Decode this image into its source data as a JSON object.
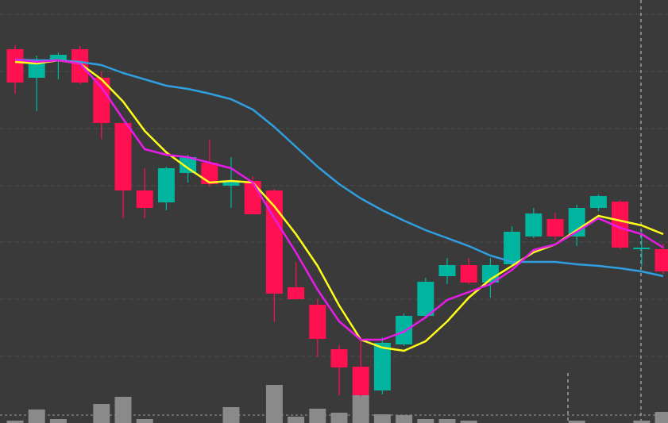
{
  "chart_data": {
    "type": "candlestick",
    "ylim": [
      0,
      533
    ],
    "yticks": [
      515,
      443,
      371,
      299,
      228,
      156,
      84
    ],
    "grid": true,
    "y2lim": [
      0,
      533
    ],
    "candles": {
      "up_color": "#00b5a0",
      "down_color": "#ff1050",
      "open": [
        471,
        435,
        457,
        471,
        435,
        378,
        293,
        278,
        315,
        328,
        299,
        305,
        293,
        171,
        149,
        93,
        71,
        41,
        99,
        135,
        185,
        199,
        177,
        200,
        235,
        257,
        235,
        271,
        279,
        219,
        219
      ],
      "high": [
        476,
        463,
        467,
        475,
        443,
        378,
        321,
        323,
        338,
        357,
        335,
        311,
        295,
        203,
        156,
        98,
        108,
        108,
        138,
        183,
        208,
        208,
        208,
        248,
        271,
        265,
        275,
        288,
        281,
        243,
        226
      ],
      "low": [
        415,
        393,
        433,
        427,
        358,
        258,
        258,
        268,
        303,
        298,
        271,
        263,
        128,
        156,
        83,
        35,
        33,
        36,
        97,
        133,
        175,
        175,
        158,
        198,
        233,
        231,
        223,
        267,
        219,
        198,
        188
      ],
      "close": [
        429,
        455,
        464,
        429,
        378,
        293,
        271,
        321,
        335,
        301,
        305,
        263,
        163,
        156,
        106,
        70,
        35,
        101,
        135,
        178,
        199,
        177,
        199,
        241,
        264,
        235,
        271,
        286,
        221,
        221,
        191
      ]
    },
    "series": [
      {
        "color": "#2f9fe0",
        "values": [
          458,
          457,
          457,
          455,
          451,
          441,
          433,
          425,
          421,
          415,
          408,
          395,
          373,
          348,
          323,
          301,
          283,
          268,
          255,
          243,
          233,
          223,
          211,
          203,
          203,
          203,
          200,
          198,
          195,
          191,
          185
        ]
      },
      {
        "color": "#ffff1a",
        "values": [
          455,
          453,
          457,
          453,
          433,
          405,
          368,
          341,
          321,
          303,
          305,
          303,
          273,
          238,
          198,
          148,
          105,
          95,
          91,
          103,
          128,
          158,
          181,
          198,
          215,
          225,
          243,
          261,
          255,
          249,
          238
        ]
      },
      {
        "color": "#e81ce8",
        "values": [
          458,
          455,
          457,
          453,
          423,
          383,
          345,
          338,
          335,
          328,
          321,
          303,
          258,
          215,
          168,
          128,
          105,
          105,
          115,
          133,
          155,
          165,
          175,
          193,
          218,
          225,
          241,
          258,
          246,
          238,
          221
        ]
      },
      {
        "color": "#8a8a8a",
        "axis": "y2",
        "values": [
          3,
          17,
          5,
          0,
          24,
          33,
          5,
          0,
          0,
          0,
          20,
          0,
          48,
          8,
          18,
          13,
          35,
          11,
          10,
          5,
          5,
          3,
          0,
          0,
          0,
          0,
          3,
          0,
          0,
          3,
          14
        ]
      }
    ]
  }
}
